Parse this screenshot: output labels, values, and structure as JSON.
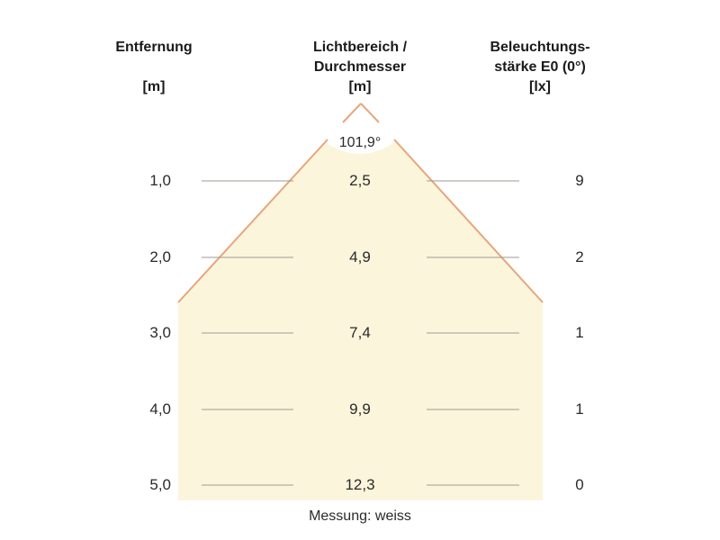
{
  "headers": {
    "distance": [
      "Entfernung",
      "",
      "[m]"
    ],
    "diameter": [
      "Lichtbereich /",
      "Durchmesser",
      "[m]"
    ],
    "illuminance": [
      "Beleuchtungs-",
      "stärke E0 (0°)",
      "[lx]"
    ]
  },
  "beam_angle": "101,9°",
  "rows": [
    {
      "distance": "1,0",
      "diameter": "2,5",
      "illuminance": "9"
    },
    {
      "distance": "2,0",
      "diameter": "4,9",
      "illuminance": "2"
    },
    {
      "distance": "3,0",
      "diameter": "7,4",
      "illuminance": "1"
    },
    {
      "distance": "4,0",
      "diameter": "9,9",
      "illuminance": "1"
    },
    {
      "distance": "5,0",
      "diameter": "12,3",
      "illuminance": "0"
    }
  ],
  "note": "Messung: weiss",
  "colors": {
    "light_fill": "#fbf5dc",
    "beam_edge": "#e8a57c",
    "grid_line": "#a09a90"
  }
}
